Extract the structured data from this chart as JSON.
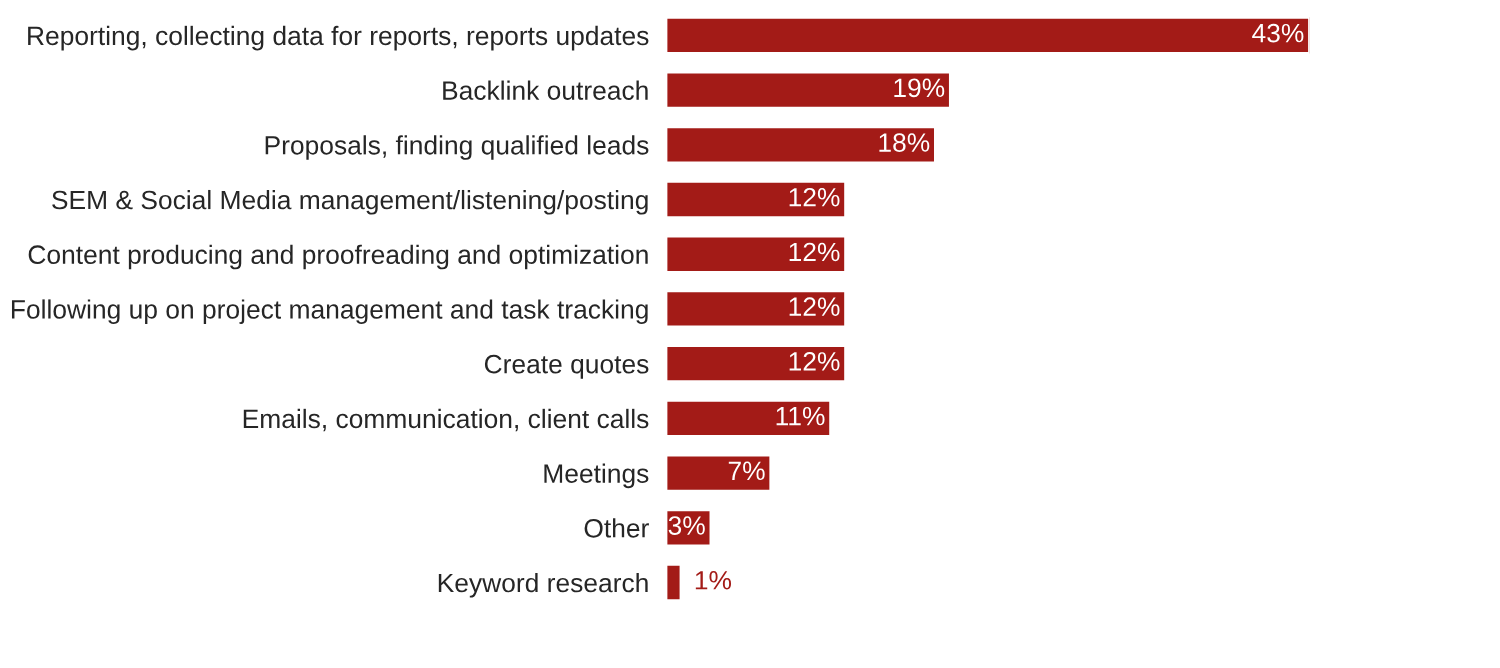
{
  "chart_data": {
    "type": "bar",
    "orientation": "horizontal",
    "color": "#a31b17",
    "categories": [
      "Reporting, collecting data for reports, reports updates",
      "Backlink outreach",
      "Proposals, finding qualified leads",
      "SEM & Social Media management/listening/posting",
      "Content producing and proofreading and optimization",
      "Following up on project management and task tracking",
      "Create quotes",
      "Emails, communication, client calls",
      "Meetings",
      "Other",
      "Keyword research"
    ],
    "values": [
      43,
      19,
      18,
      12,
      12,
      12,
      12,
      11,
      7,
      3,
      1
    ],
    "value_labels": [
      "43%",
      "19%",
      "18%",
      "12%",
      "12%",
      "12%",
      "12%",
      "11%",
      "7%",
      "3%",
      "1%"
    ]
  }
}
